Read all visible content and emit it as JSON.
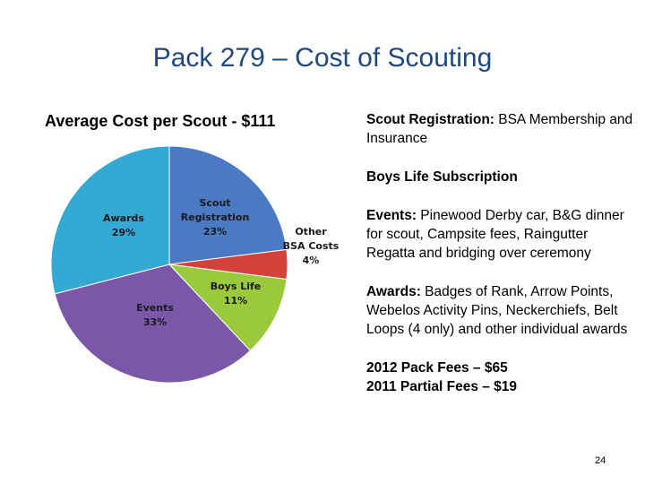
{
  "slide": {
    "title": "Pack 279 – Cost of Scouting",
    "page_number": "24"
  },
  "chart_data": {
    "type": "pie",
    "title": "Average Cost per Scout - $111",
    "slices": [
      {
        "label": [
          "Scout",
          "Registration"
        ],
        "value": 23,
        "display": "23%",
        "color": "#4a7ac4"
      },
      {
        "label": [
          "Other",
          "BSA Costs"
        ],
        "value": 4,
        "display": "4%",
        "color": "#d4403a"
      },
      {
        "label": [
          "Boys Life"
        ],
        "value": 11,
        "display": "11%",
        "color": "#9bc93c"
      },
      {
        "label": [
          "Events"
        ],
        "value": 33,
        "display": "33%",
        "color": "#7a57a8"
      },
      {
        "label": [
          "Awards"
        ],
        "value": 29,
        "display": "29%",
        "color": "#33a9d4"
      }
    ]
  },
  "notes": {
    "registration": {
      "heading": "Scout Registration:",
      "text": " BSA Membership and Insurance"
    },
    "boys_life": {
      "heading": "Boys Life Subscription"
    },
    "events": {
      "heading": "Events:",
      "text": "  Pinewood Derby car, B&G dinner for scout, Campsite fees, Raingutter Regatta and bridging over ceremony"
    },
    "awards": {
      "heading": "Awards:",
      "text": " Badges of Rank, Arrow Points, Webelos Activity Pins, Neckerchiefs, Belt Loops (4 only) and other individual awards"
    },
    "fees_2012": "2012 Pack Fees – $65",
    "fees_2011": "2011 Partial Fees – $19"
  }
}
